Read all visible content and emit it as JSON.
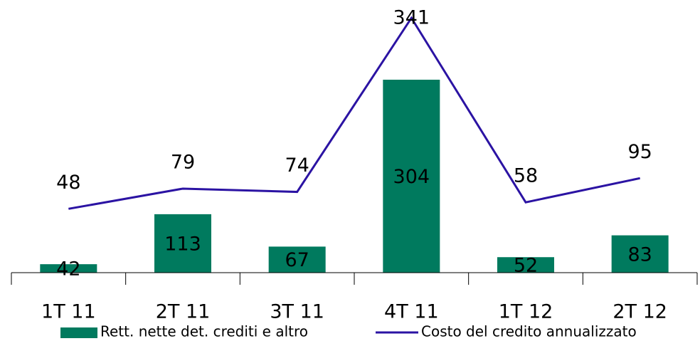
{
  "chart_data": {
    "type": "bar",
    "categories": [
      "1T 11",
      "2T 11",
      "3T 11",
      "4T 11",
      "1T 12",
      "2T 12"
    ],
    "series": [
      {
        "name": "Rett. nette det. crediti e altro",
        "type": "bar",
        "color": "#007a5e",
        "values": [
          42,
          113,
          67,
          304,
          52,
          83
        ]
      },
      {
        "name": "Costo del credito annualizzato",
        "type": "line",
        "axis": "y2",
        "color": "#2b13a3",
        "values": [
          48,
          79,
          74,
          341,
          58,
          95
        ]
      }
    ],
    "ylim": [
      30,
      400
    ],
    "y2lim": [
      -50,
      350
    ],
    "legend": "bottom"
  }
}
